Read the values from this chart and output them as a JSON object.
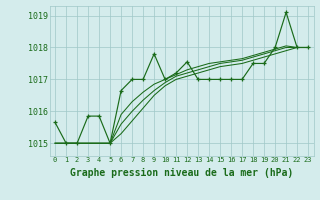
{
  "title": "Graphe pression niveau de la mer (hPa)",
  "bg_color": "#d4ecec",
  "grid_color": "#a0c8c8",
  "line_color": "#1a6b1a",
  "xlim": [
    -0.5,
    23.5
  ],
  "ylim": [
    1014.6,
    1019.3
  ],
  "yticks": [
    1015,
    1016,
    1017,
    1018,
    1019
  ],
  "xticks": [
    0,
    1,
    2,
    3,
    4,
    5,
    6,
    7,
    8,
    9,
    10,
    11,
    12,
    13,
    14,
    15,
    16,
    17,
    18,
    19,
    20,
    21,
    22,
    23
  ],
  "hours": [
    0,
    1,
    2,
    3,
    4,
    5,
    6,
    7,
    8,
    9,
    10,
    11,
    12,
    13,
    14,
    15,
    16,
    17,
    18,
    19,
    20,
    21,
    22,
    23
  ],
  "pressure_main": [
    1015.65,
    1015.0,
    1015.0,
    1015.85,
    1015.85,
    1015.0,
    1016.65,
    1017.0,
    1017.0,
    1017.8,
    1017.0,
    1017.2,
    1017.55,
    1017.0,
    1017.0,
    1017.0,
    1017.0,
    1017.0,
    1017.5,
    1017.5,
    1018.0,
    1019.1,
    1018.0,
    1018.0
  ],
  "pressure_line2": [
    1015.0,
    1015.0,
    1015.0,
    1015.0,
    1015.0,
    1015.0,
    1015.3,
    1015.7,
    1016.1,
    1016.5,
    1016.8,
    1017.0,
    1017.1,
    1017.2,
    1017.3,
    1017.4,
    1017.45,
    1017.5,
    1017.6,
    1017.7,
    1017.8,
    1017.9,
    1018.0,
    1018.0
  ],
  "pressure_line3": [
    1015.0,
    1015.0,
    1015.0,
    1015.0,
    1015.0,
    1015.0,
    1015.6,
    1016.0,
    1016.35,
    1016.65,
    1016.9,
    1017.1,
    1017.2,
    1017.3,
    1017.4,
    1017.5,
    1017.55,
    1017.6,
    1017.7,
    1017.8,
    1017.9,
    1018.0,
    1018.0,
    1018.0
  ],
  "pressure_line4": [
    1015.0,
    1015.0,
    1015.0,
    1015.0,
    1015.0,
    1015.0,
    1015.9,
    1016.3,
    1016.6,
    1016.85,
    1017.0,
    1017.15,
    1017.3,
    1017.4,
    1017.5,
    1017.55,
    1017.6,
    1017.65,
    1017.75,
    1017.85,
    1017.95,
    1018.05,
    1018.0,
    1018.0
  ],
  "xlabel": "Graphe pression niveau de la mer (hPa)",
  "xlabel_fontsize": 7,
  "ytick_fontsize": 6,
  "xtick_fontsize": 5
}
